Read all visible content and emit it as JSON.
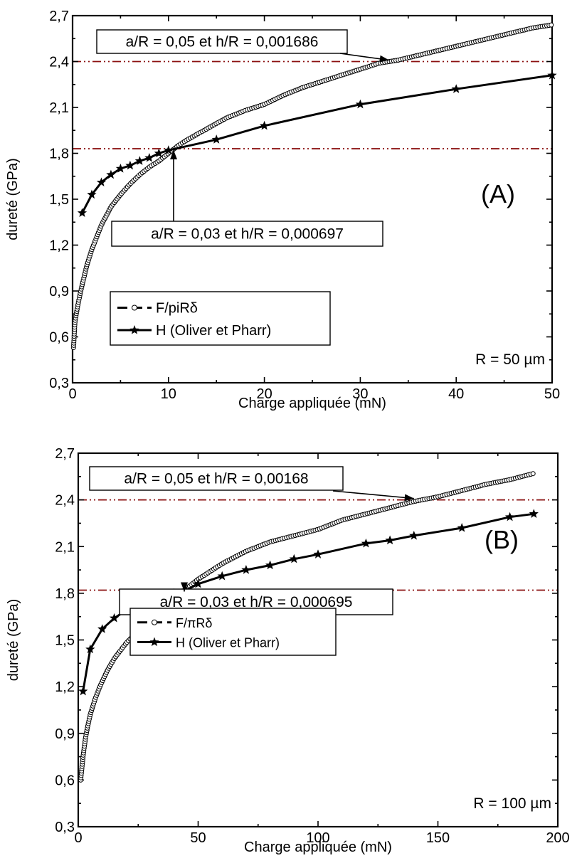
{
  "chart_data": [
    {
      "type": "line",
      "panel_label": "(A)",
      "xlabel": "Charge appliquée (mN)",
      "ylabel": "dureté (GPa)",
      "xlim": [
        0,
        50
      ],
      "ylim": [
        0.3,
        2.7
      ],
      "xticks": [
        0,
        10,
        20,
        30,
        40,
        50
      ],
      "xtick_labels": [
        "0",
        "10",
        "20",
        "30",
        "40",
        "50"
      ],
      "yticks": [
        0.3,
        0.6,
        0.9,
        1.2,
        1.5,
        1.8,
        2.1,
        2.4,
        2.7
      ],
      "ytick_labels": [
        "0,3",
        "0,6",
        "0,9",
        "1,2",
        "1,5",
        "1,8",
        "2,1",
        "2,4",
        "2,7"
      ],
      "grid": false,
      "legend_placement": "bottom-left",
      "reference_lines": [
        1.83,
        2.4
      ],
      "radius_label": "R = 50 µm",
      "series": [
        {
          "name": "F/piRδ",
          "marker": "open-circle",
          "x": [
            0.1,
            0.25,
            0.5,
            0.75,
            1,
            1.5,
            2,
            3,
            4,
            5,
            6,
            7,
            8,
            9,
            10,
            11,
            12,
            14,
            16,
            18,
            20,
            22,
            24,
            26,
            28,
            30,
            32,
            34,
            36,
            38,
            40,
            42,
            44,
            46,
            48,
            50
          ],
          "y": [
            0.53,
            0.7,
            0.79,
            0.87,
            0.94,
            1.07,
            1.17,
            1.33,
            1.45,
            1.53,
            1.6,
            1.66,
            1.71,
            1.75,
            1.8,
            1.85,
            1.89,
            1.96,
            2.03,
            2.08,
            2.12,
            2.18,
            2.23,
            2.27,
            2.31,
            2.35,
            2.39,
            2.41,
            2.44,
            2.47,
            2.5,
            2.53,
            2.56,
            2.59,
            2.62,
            2.64
          ]
        },
        {
          "name": "H (Oliver et Pharr)",
          "marker": "star",
          "x": [
            1,
            2,
            3,
            4,
            5,
            6,
            7,
            8,
            9,
            10,
            15,
            20,
            30,
            40,
            50
          ],
          "y": [
            1.41,
            1.53,
            1.61,
            1.66,
            1.7,
            1.72,
            1.75,
            1.77,
            1.8,
            1.82,
            1.89,
            1.98,
            2.12,
            2.22,
            2.31
          ]
        }
      ],
      "annotations": [
        {
          "text": "a/R = 0,05 et h/R = 0,001686",
          "x": 33,
          "y": 2.4
        },
        {
          "text": "a/R = 0,03 et h/R = 0,000697",
          "x": 11,
          "y": 1.83
        }
      ]
    },
    {
      "type": "line",
      "panel_label": "(B)",
      "xlabel": "Charge appliquée (mN)",
      "ylabel": "dureté (GPa)",
      "xlim": [
        0,
        200
      ],
      "ylim": [
        0.3,
        2.7
      ],
      "xticks": [
        0,
        50,
        100,
        150,
        200
      ],
      "xtick_labels": [
        "0",
        "50",
        "100",
        "150",
        "200"
      ],
      "yticks": [
        0.3,
        0.6,
        0.9,
        1.2,
        1.5,
        1.8,
        2.1,
        2.4,
        2.7
      ],
      "ytick_labels": [
        "0,3",
        "0,6",
        "0,9",
        "1,2",
        "1,5",
        "1,8",
        "2,1",
        "2,4",
        "2,7"
      ],
      "grid": false,
      "legend_placement": "bottom-left",
      "reference_lines": [
        1.82,
        2.4
      ],
      "radius_label": "R = 100 µm",
      "series": [
        {
          "name": "F/πRδ",
          "marker": "open-circle",
          "x": [
            1,
            2,
            3,
            4,
            5,
            7,
            9,
            12,
            15,
            20,
            25,
            30,
            35,
            40,
            45,
            50,
            55,
            60,
            65,
            70,
            80,
            90,
            100,
            110,
            120,
            130,
            140,
            150,
            160,
            170,
            180,
            190
          ],
          "y": [
            0.6,
            0.75,
            0.87,
            0.95,
            1.02,
            1.12,
            1.2,
            1.3,
            1.38,
            1.48,
            1.56,
            1.63,
            1.7,
            1.76,
            1.83,
            1.89,
            1.94,
            1.99,
            2.03,
            2.07,
            2.13,
            2.17,
            2.21,
            2.27,
            2.31,
            2.35,
            2.39,
            2.42,
            2.46,
            2.5,
            2.53,
            2.57
          ]
        },
        {
          "name": "H (Oliver et Pharr)",
          "marker": "star",
          "x": [
            2,
            5,
            10,
            15,
            20,
            25,
            30,
            35,
            40,
            45,
            50,
            60,
            70,
            80,
            90,
            100,
            120,
            130,
            140,
            160,
            180,
            190
          ],
          "y": [
            1.17,
            1.44,
            1.57,
            1.64,
            1.69,
            1.73,
            1.76,
            1.78,
            1.8,
            1.82,
            1.86,
            1.91,
            1.95,
            1.98,
            2.02,
            2.05,
            2.12,
            2.14,
            2.17,
            2.22,
            2.29,
            2.31
          ]
        }
      ],
      "annotations": [
        {
          "text": "a/R = 0,05 et h/R = 0,00168",
          "x": 140,
          "y": 2.4
        },
        {
          "text": "a/R = 0,03 et h/R = 0,000695",
          "x": 42,
          "y": 1.82
        }
      ]
    }
  ]
}
